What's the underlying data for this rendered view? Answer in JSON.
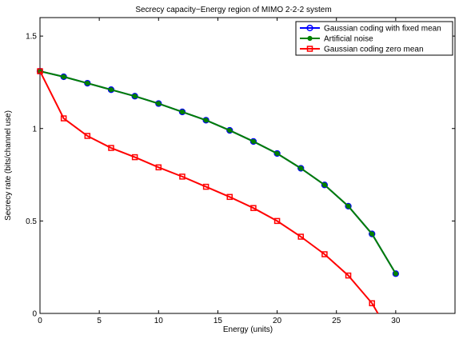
{
  "chart_data": {
    "type": "line",
    "title": "Secrecy capacity−Energy region of MIMO 2-2-2 system",
    "xlabel": "Energy (units)",
    "ylabel": "Secrecy rate (bits/channel use)",
    "xlim": [
      0,
      35
    ],
    "ylim": [
      0,
      1.6
    ],
    "xticks": [
      0,
      5,
      10,
      15,
      20,
      25,
      30
    ],
    "xtick_labels": [
      "0",
      "5",
      "10",
      "15",
      "20",
      "25",
      "30"
    ],
    "yticks": [
      0,
      0.5,
      1,
      1.5
    ],
    "ytick_labels": [
      "0",
      "0.5",
      "1",
      "1.5"
    ],
    "grid": false,
    "legend_position": "top-right",
    "series": [
      {
        "name": "Gaussian coding with fixed mean",
        "color": "#0000ff",
        "marker": "circle",
        "x": [
          0,
          2,
          4,
          6,
          8,
          10,
          12,
          14,
          16,
          18,
          20,
          22,
          24,
          26,
          28,
          30
        ],
        "y": [
          1.31,
          1.28,
          1.245,
          1.21,
          1.175,
          1.135,
          1.09,
          1.045,
          0.99,
          0.93,
          0.865,
          0.785,
          0.695,
          0.58,
          0.43,
          0.215
        ]
      },
      {
        "name": "Artificial noise",
        "color": "#008000",
        "marker": "dot",
        "x": [
          0,
          2,
          4,
          6,
          8,
          10,
          12,
          14,
          16,
          18,
          20,
          22,
          24,
          26,
          28,
          30
        ],
        "y": [
          1.31,
          1.28,
          1.245,
          1.21,
          1.175,
          1.135,
          1.09,
          1.045,
          0.99,
          0.93,
          0.865,
          0.785,
          0.695,
          0.58,
          0.43,
          0.215
        ]
      },
      {
        "name": "Gaussian coding zero mean",
        "color": "#ff0000",
        "marker": "square",
        "x": [
          0,
          2,
          4,
          6,
          8,
          10,
          12,
          14,
          16,
          18,
          20,
          22,
          24,
          26,
          28,
          28.5
        ],
        "y": [
          1.31,
          1.055,
          0.96,
          0.895,
          0.845,
          0.79,
          0.74,
          0.685,
          0.63,
          0.57,
          0.5,
          0.415,
          0.32,
          0.205,
          0.055,
          0
        ]
      }
    ]
  }
}
